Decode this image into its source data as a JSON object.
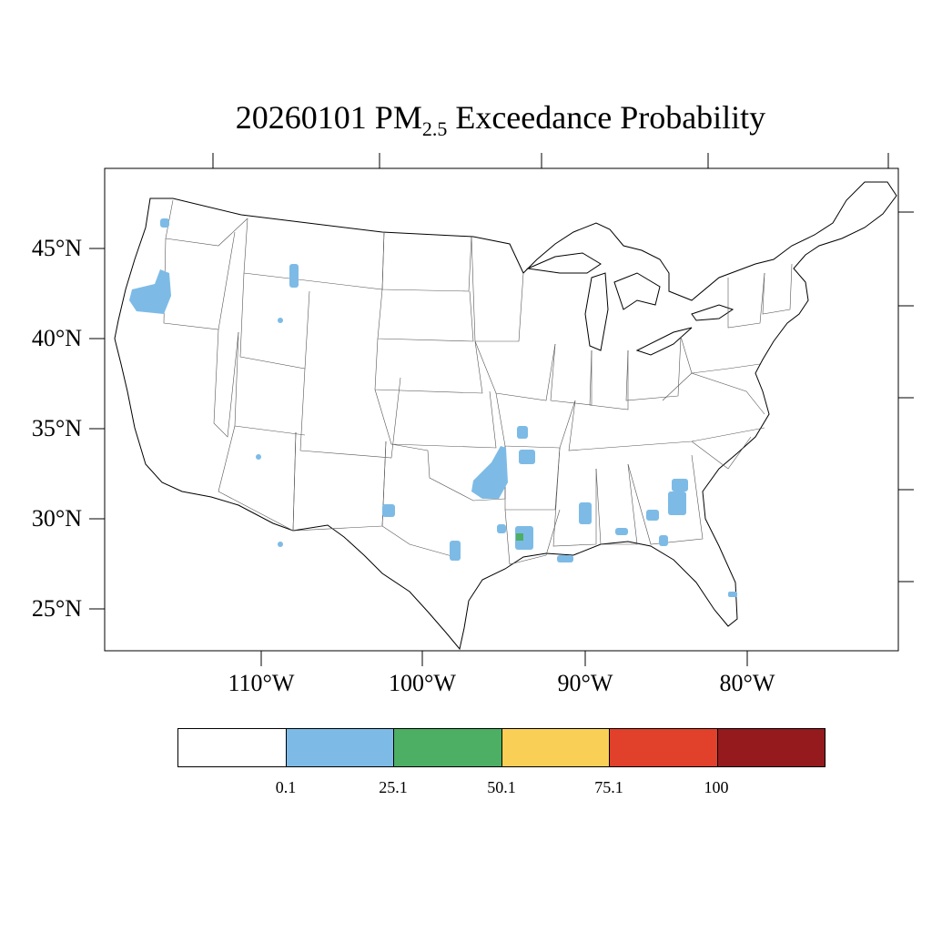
{
  "title": {
    "date": "20260101",
    "pm": "PM",
    "sub": "2.5",
    "rest": "Exceedance Probability"
  },
  "lat_labels": [
    "45°N",
    "40°N",
    "35°N",
    "30°N",
    "25°N"
  ],
  "lon_labels": [
    "110°W",
    "100°W",
    "90°W",
    "80°W"
  ],
  "colorbar": {
    "colors": [
      "#ffffff",
      "#7dbbe6",
      "#4caf64",
      "#f9cf55",
      "#e1402b",
      "#941a1d"
    ],
    "labels": [
      "0.1",
      "25.1",
      "50.1",
      "75.1",
      "100"
    ]
  },
  "probability_areas": [
    {
      "name": "oregon",
      "level": "25.1"
    },
    {
      "name": "montana",
      "level": "25.1"
    },
    {
      "name": "oklahoma",
      "level": "25.1"
    },
    {
      "name": "arkansas",
      "level": "25.1"
    },
    {
      "name": "texas",
      "level": "25.1"
    },
    {
      "name": "louisiana",
      "level": "50.1"
    },
    {
      "name": "georgia",
      "level": "25.1"
    },
    {
      "name": "florida",
      "level": "25.1"
    }
  ]
}
